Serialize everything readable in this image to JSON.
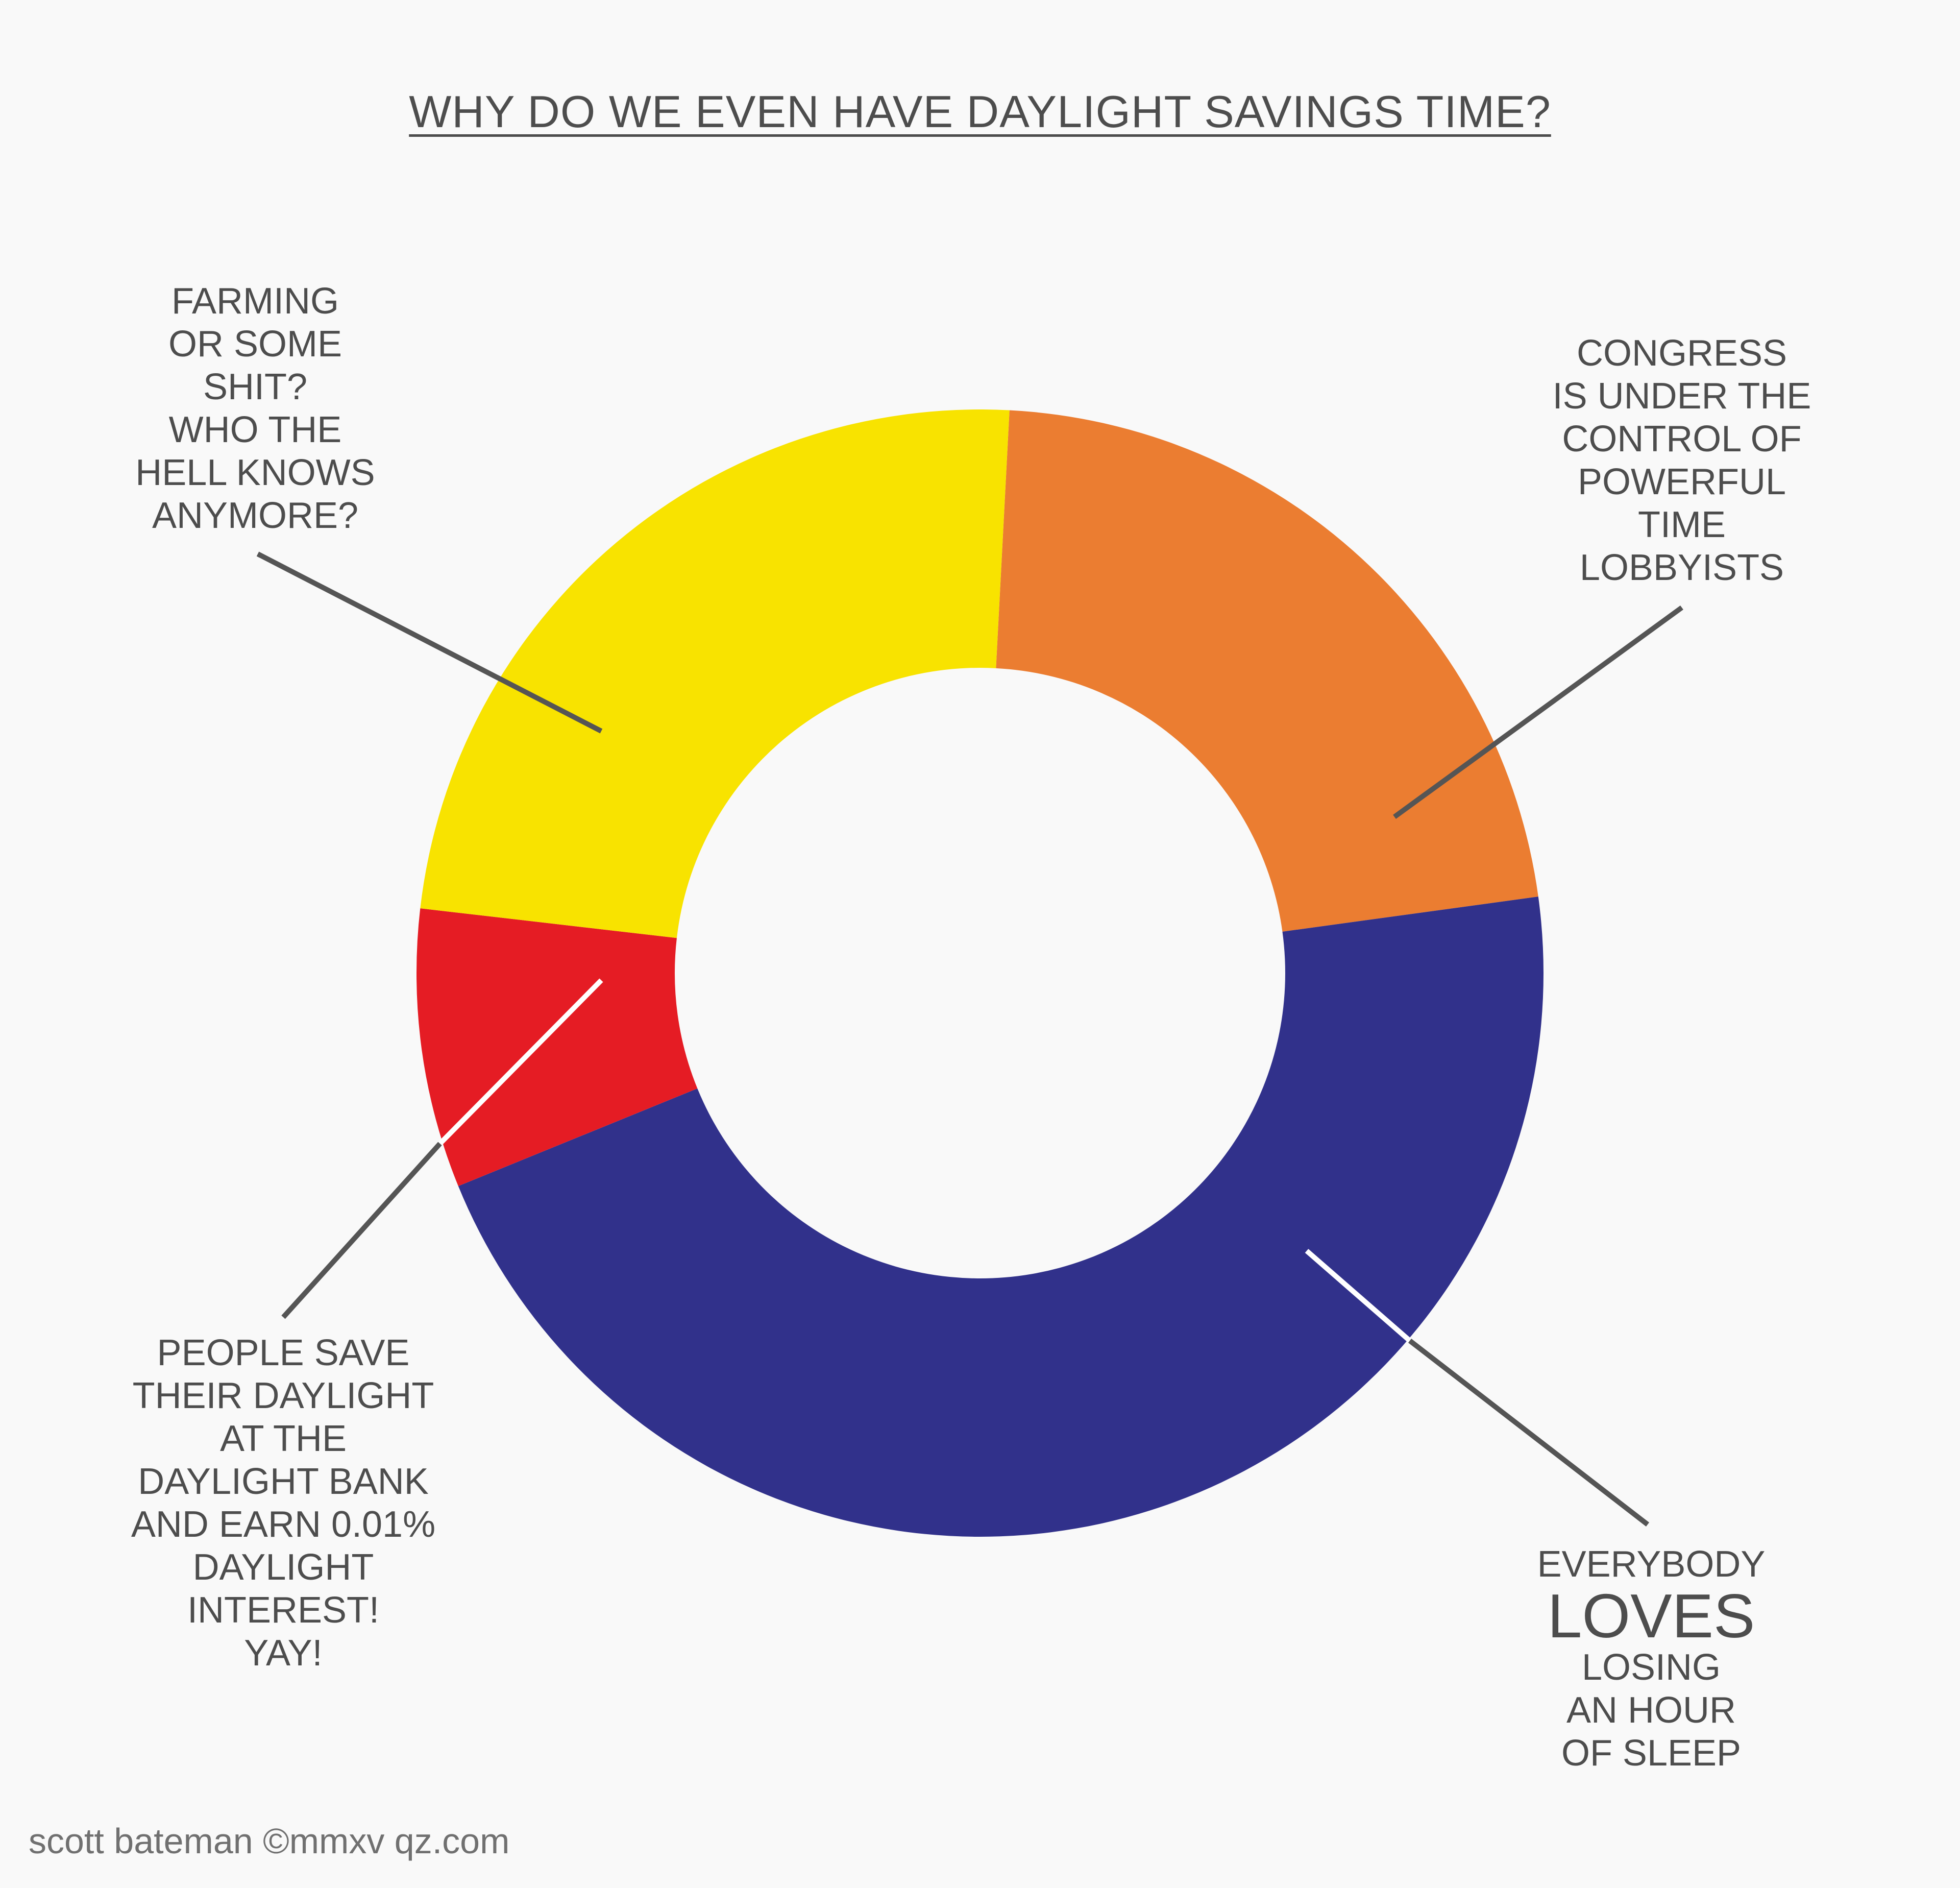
{
  "chart_data": {
    "type": "pie",
    "title": "WHY DO WE EVEN HAVE DAYLIGHT SAVINGS TIME?",
    "style": "donut",
    "segments": [
      {
        "label_lines": [
          "CONGRESS",
          "IS UNDER THE",
          "CONTROL OF",
          "POWERFUL",
          "TIME",
          "LOBBYISTS"
        ],
        "value": 22,
        "color": "#eb7d31"
      },
      {
        "label_lines": [
          "EVERYBODY",
          "LOVES",
          "LOSING",
          "AN HOUR",
          "OF SLEEP"
        ],
        "value": 46,
        "color": "#31318b"
      },
      {
        "label_lines": [
          "PEOPLE SAVE",
          "THEIR DAYLIGHT",
          "AT THE",
          "DAYLIGHT BANK",
          "AND EARN 0.01%",
          "DAYLIGHT",
          "INTEREST!",
          "YAY!"
        ],
        "value": 8,
        "color": "#e51c24"
      },
      {
        "label_lines": [
          "FARMING",
          "OR SOME",
          "SHIT?",
          "WHO THE",
          "HELL KNOWS",
          "ANYMORE?"
        ],
        "value": 24,
        "color": "#f8e300"
      }
    ],
    "legend": "none (leader-line callouts)"
  },
  "credit": "scott bateman ©mmxv qz.com",
  "colors": {
    "background": "#f9f9f9",
    "text": "#4d4d4d",
    "leader": "#555555"
  }
}
